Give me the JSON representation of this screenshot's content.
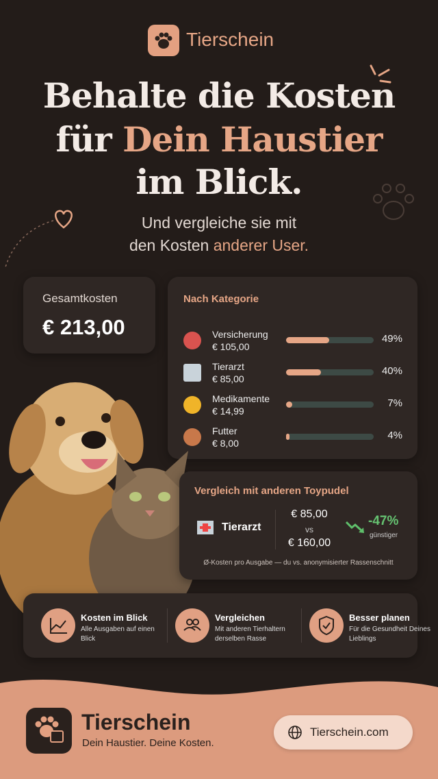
{
  "header": {
    "brand": "Tierschein"
  },
  "headline": {
    "line1": "Behalte die Kosten",
    "line2_start": "für",
    "line2_accent": "Dein Haustier",
    "line3": "im Blick."
  },
  "subtitle": {
    "line1": "Und vergleiche sie mit",
    "line2_start": "den Kosten",
    "line2_accent": "anderer User."
  },
  "total": {
    "label": "Gesamtkosten",
    "amount": "€ 213,00"
  },
  "categories": {
    "title": "Nach Kategorie",
    "items": [
      {
        "name": "Versicherung",
        "amount": "€ 105,00",
        "share": 49,
        "share_label": "49%"
      },
      {
        "name": "Tierarzt",
        "amount": "€ 85,00",
        "share": 40,
        "share_label": "40%"
      },
      {
        "name": "Medikamente",
        "amount": "€ 14,99",
        "share": 7,
        "share_label": "7%"
      },
      {
        "name": "Futter",
        "amount": "€ 8,00",
        "share": 4,
        "share_label": "4%"
      }
    ]
  },
  "comparison": {
    "title": "Vergleich mit anderen Toypudel",
    "category": "Tierarzt",
    "own": "€ 85,00",
    "vs": "vs",
    "other": "€ 160,00",
    "delta": "-47%",
    "delta_note": "günstiger",
    "footnote": "Ø-Kosten pro Ausgabe — du vs. anonymisierter Rassenschnitt"
  },
  "features": [
    {
      "title": "Kosten im Blick",
      "text": "Alle Ausgaben auf einen Blick"
    },
    {
      "title": "Vergleichen",
      "text": "Mit anderen Tierhaltern derselben Rasse"
    },
    {
      "title": "Besser planen",
      "text": "Für die Gesundheit Deines Lieblings"
    }
  ],
  "footer": {
    "brand": "Tierschein",
    "tagline": "Dein Haustier. Deine Kosten.",
    "link": "Tierschein.com"
  }
}
